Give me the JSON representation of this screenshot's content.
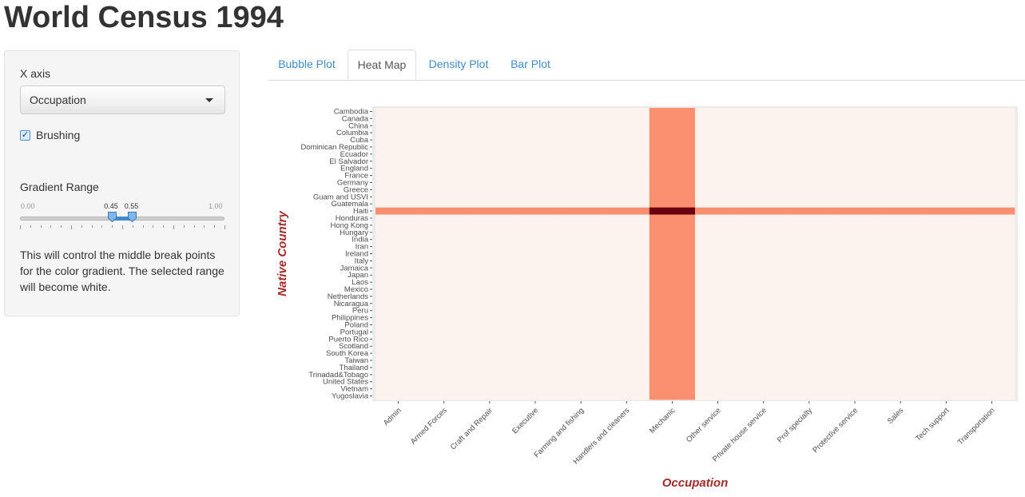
{
  "app": {
    "title": "World Census 1994"
  },
  "sidebar": {
    "x_axis_label": "X axis",
    "x_axis_selected": "Occupation",
    "brushing_label": "Brushing",
    "brushing_checked": true,
    "gradient_label": "Gradient Range",
    "slider": {
      "min": 0.0,
      "max": 1.0,
      "min_label": "0.00",
      "max_label": "1.00",
      "low": 0.45,
      "high": 0.55,
      "low_label": "0.45",
      "high_label": "0.55"
    },
    "description": "This will control the middle break points for the color gradient. The selected range will become white."
  },
  "tabs": [
    {
      "label": "Bubble Plot",
      "active": false
    },
    {
      "label": "Heat Map",
      "active": true
    },
    {
      "label": "Density Plot",
      "active": false
    },
    {
      "label": "Bar Plot",
      "active": false
    }
  ],
  "chart_data": {
    "type": "heatmap",
    "xlabel": "Occupation",
    "ylabel": "Native Country",
    "x_categories": [
      "Admin",
      "Armed Forces",
      "Craft and Repair",
      "Executive",
      "Farming and fishing",
      "Handlers and cleaners",
      "Mechanic",
      "Other service",
      "Private house service",
      "Prof specialty",
      "Protective service",
      "Sales",
      "Tech support",
      "Transportation"
    ],
    "y_categories": [
      "Cambodia",
      "Canada",
      "China",
      "Columbia",
      "Cuba",
      "Dominican Republic",
      "Ecuador",
      "El Salvador",
      "England",
      "France",
      "Germany",
      "Greece",
      "Guam and USVI",
      "Guatemala",
      "Haiti",
      "Honduras",
      "Hong Kong",
      "Hungary",
      "India",
      "Iran",
      "Ireland",
      "Italy",
      "Jamaica",
      "Japan",
      "Laos",
      "Mexico",
      "Netherlands",
      "Nicaragua",
      "Peru",
      "Philippines",
      "Poland",
      "Portugal",
      "Puerto Rico",
      "Scotland",
      "South Korea",
      "Taiwan",
      "Thailand",
      "Trinadad&Tobago",
      "United States",
      "Vietnam",
      "Yugoslavia"
    ],
    "base_level": 0.05,
    "highlight_column": "Mechanic",
    "highlight_row": "Haiti",
    "highlight_level": 0.5,
    "intersection_level": 1.0,
    "colors": {
      "low": "#fdf3ee",
      "mid": "#fb9070",
      "high": "#6b0010"
    },
    "grid": false
  }
}
